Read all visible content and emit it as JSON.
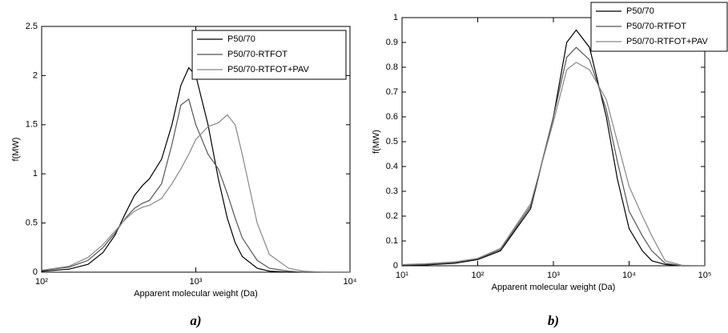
{
  "chart_data": [
    {
      "type": "line",
      "x_label": "Apparent molecular weight (Da)",
      "y_label": "f(MW)",
      "caption": "a)",
      "log_x": true,
      "legend": "upper right",
      "xlim": [
        100,
        10000
      ],
      "xticks": [
        {
          "value": 100,
          "label": "10²"
        },
        {
          "value": 1000,
          "label": "10³"
        },
        {
          "value": 10000,
          "label": "10⁴"
        }
      ],
      "ylim": [
        0,
        2.5
      ],
      "yticks": [
        0,
        0.5,
        1,
        1.5,
        2,
        2.5
      ],
      "x": [
        100,
        150,
        200,
        250,
        300,
        350,
        400,
        450,
        500,
        600,
        700,
        800,
        900,
        1000,
        1200,
        1400,
        1600,
        1800,
        2000,
        2500,
        3000,
        4000,
        5000,
        7000,
        10000
      ],
      "series": [
        {
          "name": "P50/70",
          "color": "#000000",
          "values": [
            0.01,
            0.03,
            0.08,
            0.2,
            0.38,
            0.6,
            0.78,
            0.88,
            0.95,
            1.15,
            1.5,
            1.9,
            2.08,
            2.0,
            1.5,
            0.95,
            0.55,
            0.3,
            0.16,
            0.04,
            0.01,
            0,
            0,
            0,
            0
          ]
        },
        {
          "name": "P50/70-RTFOT",
          "color": "#555555",
          "values": [
            0.02,
            0.05,
            0.12,
            0.25,
            0.4,
            0.55,
            0.65,
            0.7,
            0.73,
            0.9,
            1.3,
            1.7,
            1.76,
            1.5,
            1.2,
            1.05,
            0.8,
            0.55,
            0.35,
            0.12,
            0.04,
            0.01,
            0,
            0,
            0
          ]
        },
        {
          "name": "P50/70-RTFOT+PAV",
          "color": "#888888",
          "values": [
            0.02,
            0.06,
            0.15,
            0.28,
            0.42,
            0.54,
            0.62,
            0.66,
            0.68,
            0.75,
            0.9,
            1.05,
            1.2,
            1.35,
            1.48,
            1.52,
            1.6,
            1.5,
            1.2,
            0.5,
            0.18,
            0.04,
            0.01,
            0,
            0
          ]
        }
      ]
    },
    {
      "type": "line",
      "x_label": "Apparent molecular weight (Da)",
      "y_label": "f(MW)",
      "caption": "b)",
      "log_x": true,
      "legend": "upper right",
      "xlim": [
        10,
        100000
      ],
      "xticks": [
        {
          "value": 10,
          "label": "10¹"
        },
        {
          "value": 100,
          "label": "10²"
        },
        {
          "value": 1000,
          "label": "10³"
        },
        {
          "value": 10000,
          "label": "10⁴"
        },
        {
          "value": 100000,
          "label": "10⁵"
        }
      ],
      "ylim": [
        0,
        1
      ],
      "yticks": [
        0,
        0.1,
        0.2,
        0.3,
        0.4,
        0.5,
        0.6,
        0.7,
        0.8,
        0.9,
        1
      ],
      "x": [
        10,
        20,
        50,
        100,
        200,
        500,
        1000,
        1500,
        2000,
        3000,
        5000,
        7000,
        10000,
        15000,
        20000,
        30000,
        50000,
        100000
      ],
      "series": [
        {
          "name": "P50/70",
          "color": "#000000",
          "values": [
            0,
            0.003,
            0.01,
            0.025,
            0.06,
            0.23,
            0.6,
            0.9,
            0.95,
            0.88,
            0.6,
            0.35,
            0.15,
            0.06,
            0.02,
            0.005,
            0,
            0
          ]
        },
        {
          "name": "P50/70-RTFOT",
          "color": "#555555",
          "values": [
            0.003,
            0.006,
            0.013,
            0.028,
            0.065,
            0.24,
            0.6,
            0.84,
            0.88,
            0.83,
            0.63,
            0.42,
            0.22,
            0.12,
            0.06,
            0.01,
            0,
            0
          ]
        },
        {
          "name": "P50/70-RTFOT+PAV",
          "color": "#888888",
          "values": [
            0.005,
            0.008,
            0.016,
            0.03,
            0.07,
            0.25,
            0.58,
            0.79,
            0.82,
            0.79,
            0.67,
            0.5,
            0.32,
            0.2,
            0.12,
            0.02,
            0.002,
            0
          ]
        }
      ]
    }
  ]
}
